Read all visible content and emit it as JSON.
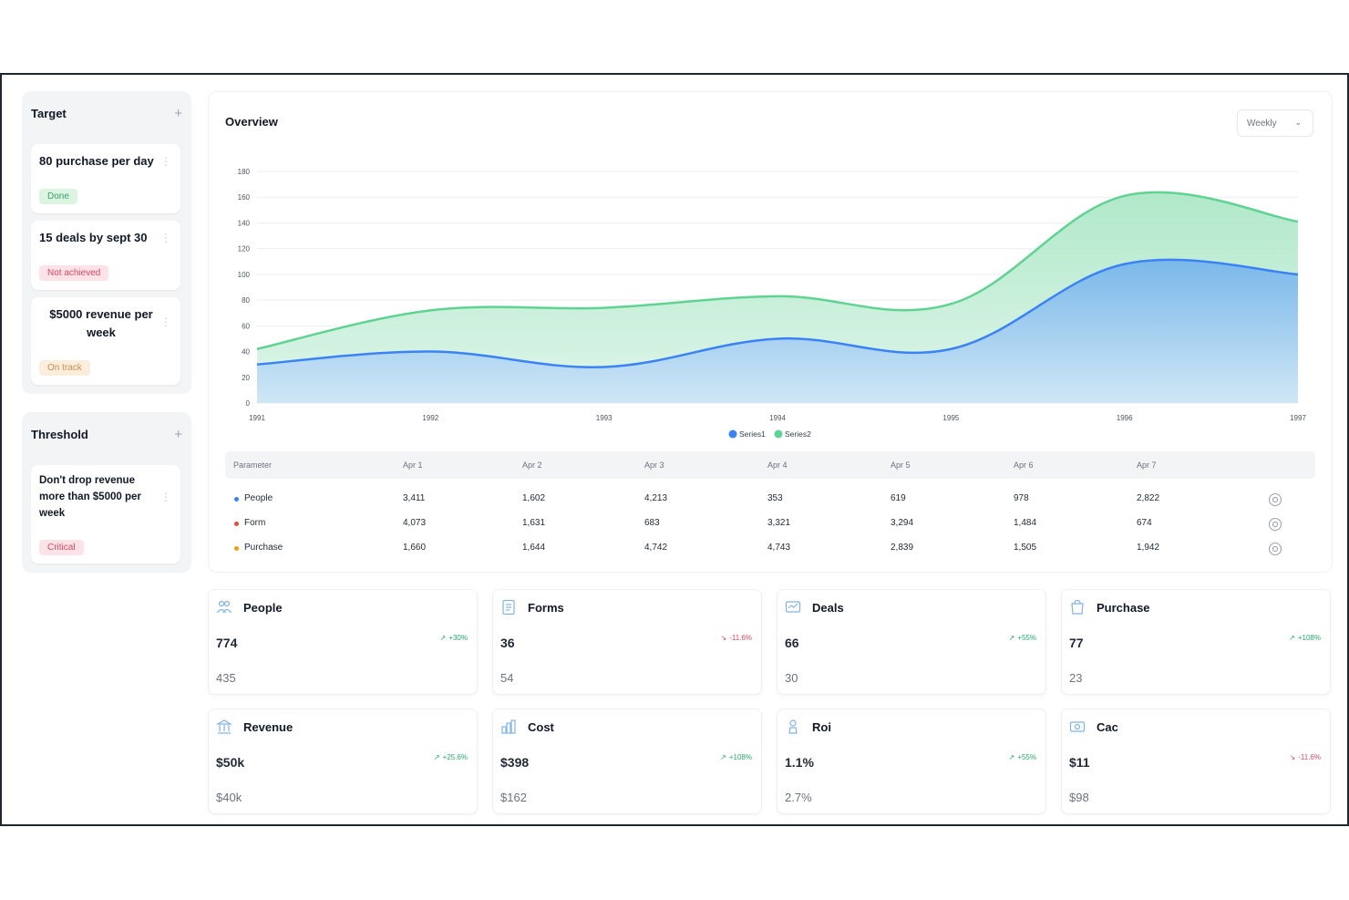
{
  "target": {
    "title": "Target",
    "add_label": "+",
    "items": [
      {
        "lines": [
          "80 purchase per day"
        ],
        "status": "Done"
      },
      {
        "lines": [
          "15 deals by sept 30"
        ],
        "status": "Not achieved"
      },
      {
        "lines": [
          "$5000 revenue per",
          "week"
        ],
        "status": "On track"
      }
    ]
  },
  "threshold": {
    "title": "Threshold",
    "add_label": "+",
    "items": [
      {
        "lines": [
          "Don't drop revenue",
          "more than $5000 per",
          "week"
        ],
        "status": "Critical"
      }
    ]
  },
  "overview": {
    "title": "Overview",
    "period": "Weekly"
  },
  "chart_data": {
    "type": "area",
    "x": [
      "1991",
      "1992",
      "1993",
      "1994",
      "1995",
      "1996",
      "1997"
    ],
    "ylim": [
      0,
      180
    ],
    "yticks": [
      0,
      20,
      40,
      60,
      80,
      100,
      120,
      140,
      160,
      180
    ],
    "series": [
      {
        "name": "Series1",
        "color": "#3b82f6",
        "values": [
          30,
          40,
          28,
          50,
          42,
          108,
          100
        ]
      },
      {
        "name": "Series2",
        "color": "#5fd391",
        "values": [
          12,
          32,
          46,
          33,
          35,
          53,
          41
        ]
      }
    ],
    "legend_position": "bottom",
    "grid": true
  },
  "table": {
    "headers": [
      "Parameter",
      "Apr 1",
      "Apr 2",
      "Apr 3",
      "Apr 4",
      "Apr 5",
      "Apr 6",
      "Apr 7"
    ],
    "rows": [
      {
        "label": "People",
        "color": "#3b82f6",
        "values": [
          "3,411",
          "1,602",
          "4,213",
          "353",
          "619",
          "978",
          "2,822"
        ]
      },
      {
        "label": "Form",
        "color": "#ef4444",
        "values": [
          "4,073",
          "1,631",
          "683",
          "3,321",
          "3,294",
          "1,484",
          "674"
        ]
      },
      {
        "label": "Purchase",
        "color": "#f59e0b",
        "values": [
          "1,660",
          "1,644",
          "4,742",
          "4,743",
          "2,839",
          "1,505",
          "1,942"
        ]
      }
    ]
  },
  "stats": [
    {
      "title": "People",
      "icon": "people-icon",
      "value": "774",
      "prev": "435",
      "delta": "+30%",
      "trend": "up"
    },
    {
      "title": "Forms",
      "icon": "forms-icon",
      "value": "36",
      "prev": "54",
      "delta": "-11.6%",
      "trend": "down"
    },
    {
      "title": "Deals",
      "icon": "deals-icon",
      "value": "66",
      "prev": "30",
      "delta": "+55%",
      "trend": "up"
    },
    {
      "title": "Purchase",
      "icon": "purchase-icon",
      "value": "77",
      "prev": "23",
      "delta": "+108%",
      "trend": "up"
    },
    {
      "title": "Revenue",
      "icon": "revenue-icon",
      "value": "$50k",
      "prev": "$40k",
      "delta": "+25.6%",
      "trend": "up"
    },
    {
      "title": "Cost",
      "icon": "cost-icon",
      "value": "$398",
      "prev": "$162",
      "delta": "+108%",
      "trend": "up"
    },
    {
      "title": "Roi",
      "icon": "roi-icon",
      "value": "1.1%",
      "prev": "2.7%",
      "delta": "+55%",
      "trend": "up"
    },
    {
      "title": "Cac",
      "icon": "cac-icon",
      "value": "$11",
      "prev": "$98",
      "delta": "-11.6%",
      "trend": "down"
    }
  ]
}
